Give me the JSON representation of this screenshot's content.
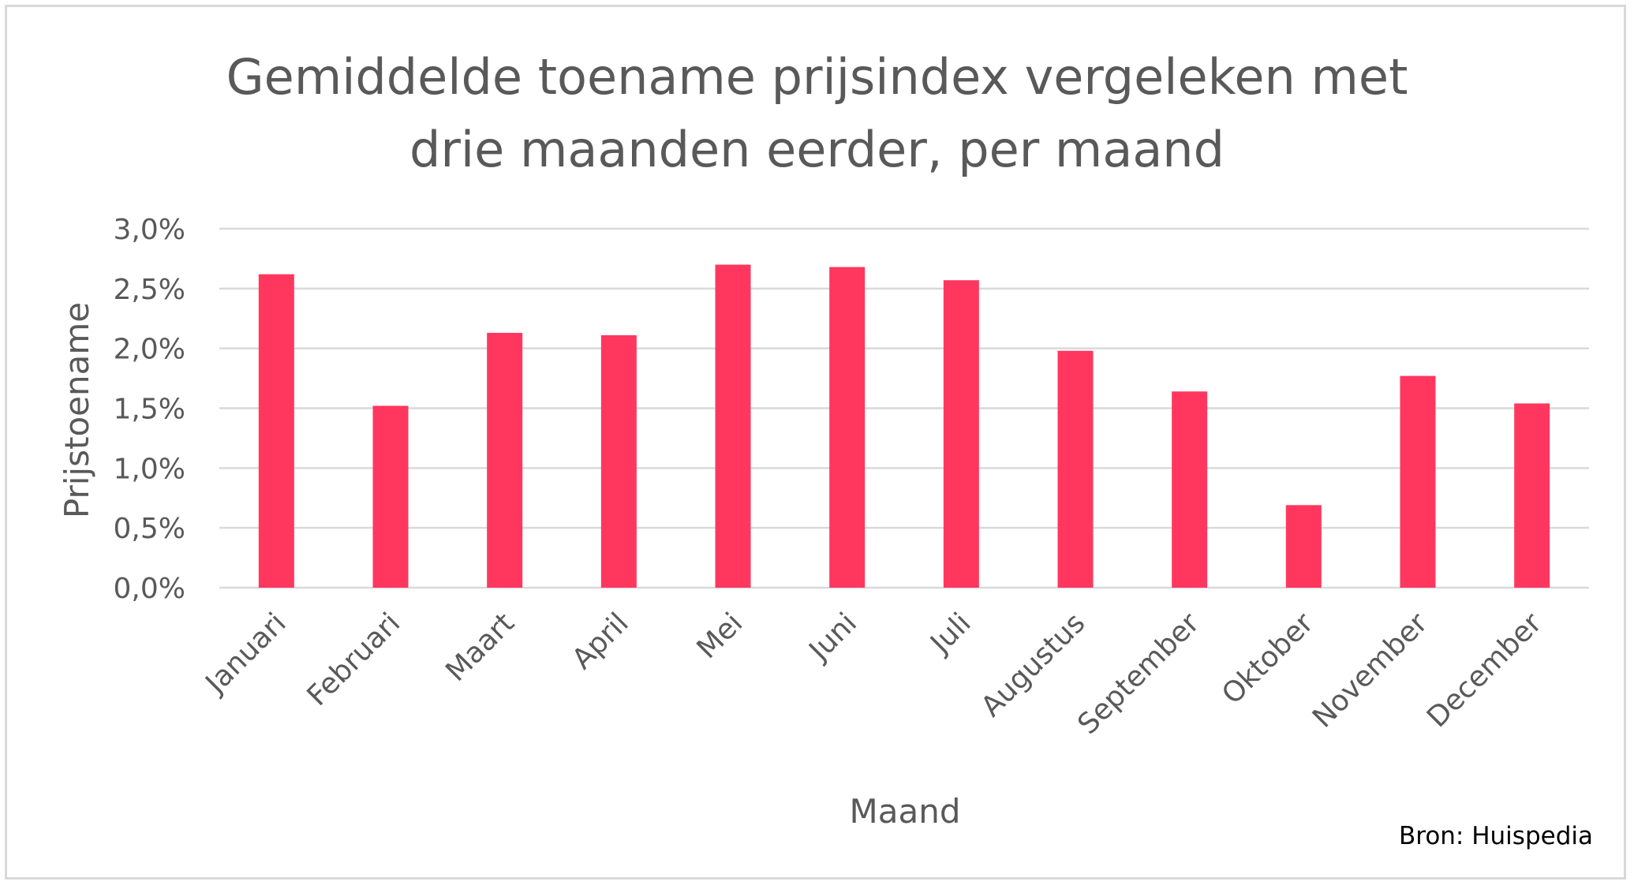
{
  "chart_data": {
    "type": "bar",
    "title_lines": [
      "Gemiddelde toename prijsindex vergeleken met",
      "drie maanden eerder, per maand"
    ],
    "xlabel": "Maand",
    "ylabel": "Prijstoename",
    "categories": [
      "Januari",
      "Februari",
      "Maart",
      "April",
      "Mei",
      "Juni",
      "Juli",
      "Augustus",
      "September",
      "Oktober",
      "November",
      "December"
    ],
    "values": [
      2.62,
      1.52,
      2.13,
      2.11,
      2.7,
      2.68,
      2.57,
      1.98,
      1.64,
      0.69,
      1.77,
      1.54
    ],
    "ylim": [
      0,
      3.0
    ],
    "yticks": [
      "0,0%",
      "0,5%",
      "1,0%",
      "1,5%",
      "2,0%",
      "2,5%",
      "3,0%"
    ],
    "grid": true,
    "bar_color": "#ff375f",
    "source": "Bron: Huispedia"
  }
}
